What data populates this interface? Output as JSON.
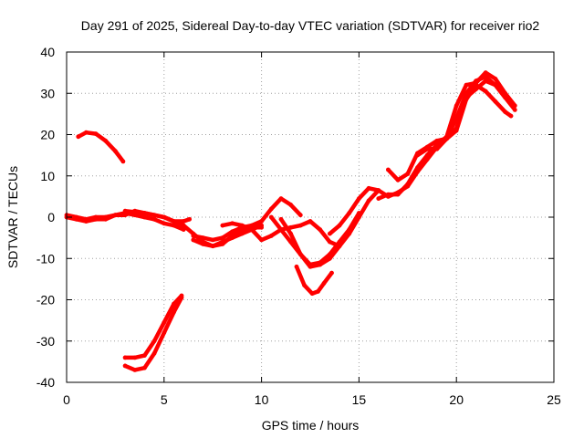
{
  "chart_data": {
    "type": "scatter",
    "title": "Day 291 of 2025, Sidereal Day-to-day VTEC variation (SDTVAR) for receiver rio2",
    "xlabel": "GPS time / hours",
    "ylabel": "SDTVAR / TECUs",
    "xlim": [
      0,
      25
    ],
    "ylim": [
      -40,
      40
    ],
    "xticks": [
      0,
      5,
      10,
      15,
      20,
      25
    ],
    "yticks": [
      -40,
      -30,
      -20,
      -10,
      0,
      10,
      20,
      30,
      40
    ],
    "grid": true,
    "color": "#ff0000",
    "series": [
      {
        "name": "arc-upper-left",
        "x": [
          0.6,
          1.0,
          1.5,
          2.0,
          2.5,
          2.9
        ],
        "y": [
          19.5,
          20.5,
          20.2,
          18.5,
          16.0,
          13.5
        ]
      },
      {
        "name": "arc-baseline-a",
        "x": [
          0,
          0.5,
          1.0,
          1.5,
          2.0,
          2.5,
          3.0,
          3.5,
          4.0,
          4.5,
          5.0,
          5.5,
          6.0
        ],
        "y": [
          0,
          -0.5,
          -1.0,
          -0.5,
          -0.5,
          0.5,
          1.0,
          0.5,
          0,
          -0.5,
          -1.5,
          -2.0,
          -3.0
        ]
      },
      {
        "name": "arc-baseline-b",
        "x": [
          0,
          0.5,
          1.0,
          1.5,
          2.0,
          2.5,
          3.0,
          3.5,
          4.0,
          4.5,
          5.0,
          5.5,
          6.0,
          6.3
        ],
        "y": [
          0.5,
          0,
          -0.5,
          0,
          0,
          0.5,
          0.5,
          1.5,
          1.0,
          0.5,
          0,
          -1.0,
          -1.0,
          -0.5
        ]
      },
      {
        "name": "arc-lower-left-a",
        "x": [
          3.0,
          3.5,
          4.0,
          4.5,
          5.0,
          5.5,
          5.9
        ],
        "y": [
          -36.0,
          -37.0,
          -36.5,
          -33.0,
          -28.0,
          -23.0,
          -19.5
        ]
      },
      {
        "name": "arc-lower-left-b",
        "x": [
          3.0,
          3.5,
          4.0,
          4.5,
          5.0,
          5.5,
          5.9
        ],
        "y": [
          -34.0,
          -34.0,
          -33.5,
          -30.0,
          -25.5,
          -21.0,
          -19.0
        ]
      },
      {
        "name": "arc-middle-a",
        "x": [
          3.0,
          4.0,
          5.0,
          6.0,
          6.5,
          7.0,
          7.5,
          8.0,
          8.5,
          9.0,
          9.5,
          10.0
        ],
        "y": [
          1.5,
          1.0,
          0.0,
          -2.0,
          -4.0,
          -6.0,
          -7.0,
          -6.5,
          -4.5,
          -3.0,
          -2.5,
          -2.5
        ]
      },
      {
        "name": "arc-middle-b",
        "x": [
          6.5,
          7.0,
          7.5,
          8.0,
          8.5,
          9.0,
          9.5,
          10.0
        ],
        "y": [
          -5.5,
          -6.5,
          -7.0,
          -6.0,
          -5.0,
          -4.0,
          -3.0,
          -2.0
        ]
      },
      {
        "name": "arc-middle-c",
        "x": [
          6.5,
          7.0,
          7.5,
          8.0,
          8.5,
          9.0,
          9.5,
          10.0,
          10.5,
          11.0,
          11.5,
          12.0
        ],
        "y": [
          -4.5,
          -5.0,
          -5.5,
          -5.0,
          -3.5,
          -2.5,
          -2.0,
          -1.0,
          2.0,
          4.5,
          3.0,
          0.5
        ]
      },
      {
        "name": "arc-middle-d",
        "x": [
          8.0,
          8.5,
          9.0,
          9.5,
          10.0,
          10.5,
          11.0,
          11.5,
          12.0,
          12.5,
          13.0,
          13.5,
          14.0
        ],
        "y": [
          -2.0,
          -1.5,
          -2.0,
          -3.0,
          -5.5,
          -4.5,
          -3.0,
          -2.5,
          -2.0,
          -1.0,
          -3.0,
          -6.0,
          -7.0
        ]
      },
      {
        "name": "arc-dip-a",
        "x": [
          10.5,
          11.0,
          11.5,
          12.0,
          12.5,
          13.0,
          13.5,
          14.0,
          14.5,
          15.0
        ],
        "y": [
          0.0,
          -3.0,
          -6.0,
          -9.0,
          -11.5,
          -11.0,
          -9.0,
          -6.0,
          -3.0,
          1.0
        ]
      },
      {
        "name": "arc-dip-b",
        "x": [
          11.0,
          11.5,
          12.0,
          12.5,
          13.0,
          13.5,
          14.0,
          14.5,
          15.0,
          15.5,
          16.0
        ],
        "y": [
          -0.5,
          -4.0,
          -9.0,
          -12.0,
          -11.5,
          -10.0,
          -7.0,
          -4.0,
          0.0,
          4.0,
          6.5
        ]
      },
      {
        "name": "arc-dip-deep",
        "x": [
          11.8,
          12.2,
          12.6,
          12.9,
          13.2,
          13.6
        ],
        "y": [
          -12.0,
          -16.5,
          -18.5,
          -18.0,
          -16.0,
          -13.5
        ]
      },
      {
        "name": "arc-rise-a",
        "x": [
          13.5,
          14.0,
          14.5,
          15.0,
          15.5,
          16.0,
          16.5,
          17.0,
          17.5,
          18.0,
          18.5,
          19.0,
          19.5,
          20.0,
          20.5,
          21.0,
          21.5,
          22.0,
          22.5,
          23.0
        ],
        "y": [
          -4.0,
          -2.0,
          1.0,
          4.5,
          7.0,
          6.5,
          5.0,
          6.0,
          7.5,
          11.0,
          14.0,
          17.0,
          19.0,
          24.0,
          30.0,
          33.0,
          34.0,
          32.0,
          29.0,
          26.0
        ]
      },
      {
        "name": "arc-rise-b",
        "x": [
          16.0,
          16.5,
          17.0,
          17.5,
          18.0,
          18.5,
          19.0,
          19.5,
          20.0,
          20.5,
          21.0,
          21.5,
          22.0,
          22.5,
          23.0
        ],
        "y": [
          4.5,
          5.5,
          5.5,
          8.0,
          12.0,
          15.0,
          17.5,
          19.5,
          27.0,
          32.0,
          32.5,
          35.0,
          33.5,
          30.0,
          27.0
        ]
      },
      {
        "name": "arc-rise-c",
        "x": [
          16.5,
          17.0,
          17.5,
          18.0,
          18.5,
          19.0,
          19.5,
          20.0,
          20.5,
          21.0,
          21.5,
          22.0,
          22.5
        ],
        "y": [
          11.5,
          9.0,
          10.5,
          15.5,
          17.0,
          18.5,
          19.0,
          21.5,
          29.0,
          31.0,
          33.0,
          32.0,
          29.0
        ]
      },
      {
        "name": "arc-rise-d",
        "x": [
          18.0,
          18.5,
          19.0,
          19.5,
          20.0,
          20.5,
          21.0,
          21.5,
          22.0,
          22.5,
          22.8
        ],
        "y": [
          15.0,
          16.5,
          16.5,
          19.0,
          21.0,
          28.5,
          32.0,
          30.5,
          28.0,
          25.5,
          24.5
        ]
      }
    ]
  }
}
